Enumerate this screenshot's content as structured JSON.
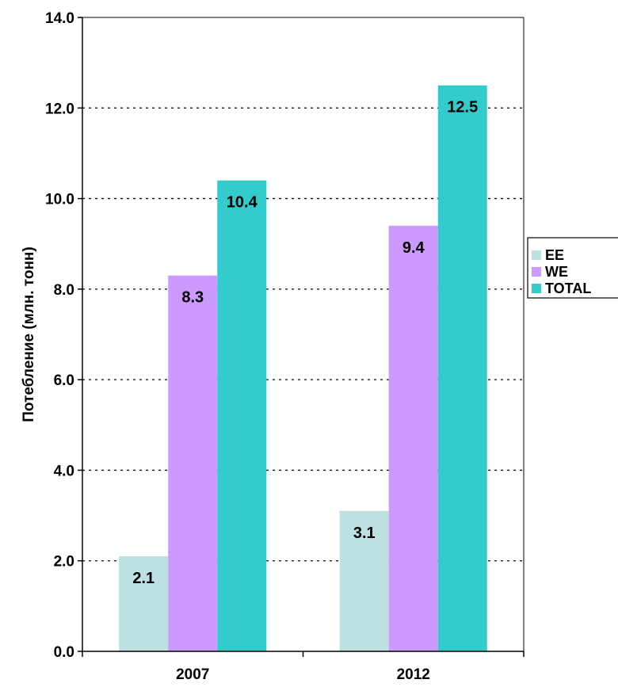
{
  "chart_data": {
    "type": "bar",
    "categories": [
      "2007",
      "2012"
    ],
    "series": [
      {
        "name": "EE",
        "values": [
          2.1,
          3.1
        ],
        "color": "#bde0e0",
        "labels": [
          "2.1",
          "3.1"
        ]
      },
      {
        "name": "WE",
        "values": [
          8.3,
          9.4
        ],
        "color": "#cc99ff",
        "labels": [
          "8.3",
          "9.4"
        ]
      },
      {
        "name": "TOTAL",
        "values": [
          10.4,
          12.5
        ],
        "color": "#33cccc",
        "labels": [
          "10.4",
          "12.5"
        ]
      }
    ],
    "title": "",
    "xlabel": "",
    "ylabel": "Потебление (млн. тонн)",
    "ylim": [
      0,
      14
    ],
    "yticks": [
      0,
      2,
      4,
      6,
      8,
      10,
      12,
      14
    ],
    "ytick_labels": [
      "0.0",
      "2.0",
      "4.0",
      "6.0",
      "8.0",
      "10.0",
      "12.0",
      "14.0"
    ],
    "grid": "horizontal dotted",
    "legend_position": "right"
  }
}
